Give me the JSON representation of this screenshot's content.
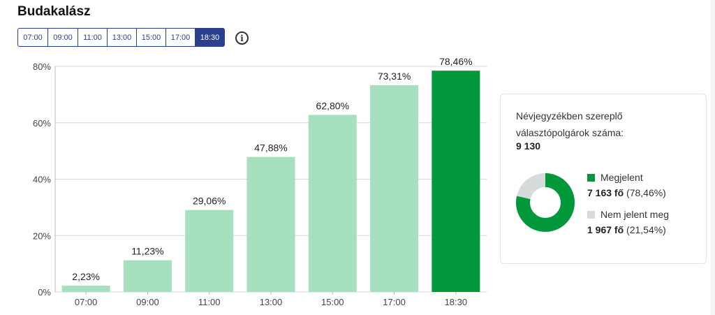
{
  "title": "Budakalász",
  "time_tabs": [
    {
      "label": "07:00",
      "active": false
    },
    {
      "label": "09:00",
      "active": false
    },
    {
      "label": "11:00",
      "active": false
    },
    {
      "label": "13:00",
      "active": false
    },
    {
      "label": "15:00",
      "active": false
    },
    {
      "label": "17:00",
      "active": false
    },
    {
      "label": "18:30",
      "active": true
    }
  ],
  "info_icon": "info-icon",
  "chart_data": {
    "type": "bar",
    "categories": [
      "07:00",
      "09:00",
      "11:00",
      "13:00",
      "15:00",
      "17:00",
      "18:30"
    ],
    "values": [
      2.23,
      11.23,
      29.06,
      47.88,
      62.8,
      73.31,
      78.46
    ],
    "data_labels": [
      "2,23%",
      "11,23%",
      "29,06%",
      "47,88%",
      "62,80%",
      "73,31%",
      "78,46%"
    ],
    "highlight_index": 6,
    "ylim": [
      0,
      80
    ],
    "yticks": [
      0,
      20,
      40,
      60,
      80
    ],
    "ytick_labels": [
      "0%",
      "20%",
      "40%",
      "60%",
      "80%"
    ],
    "grid": true,
    "colors": {
      "bar": "#a6e0bf",
      "highlight": "#00983a",
      "grid": "#d9d9d9"
    }
  },
  "summary": {
    "label": "Névjegyzékben szereplő választópolgárok száma:",
    "total": "9 130",
    "present": {
      "label": "Megjelent",
      "count": "7 163 fő",
      "pct": "(78,46%)",
      "value": 78.46,
      "color": "#00983a"
    },
    "absent": {
      "label": "Nem jelent meg",
      "count": "1 967 fő",
      "pct": "(21,54%)",
      "value": 21.54,
      "color": "#d6dbdc"
    }
  }
}
